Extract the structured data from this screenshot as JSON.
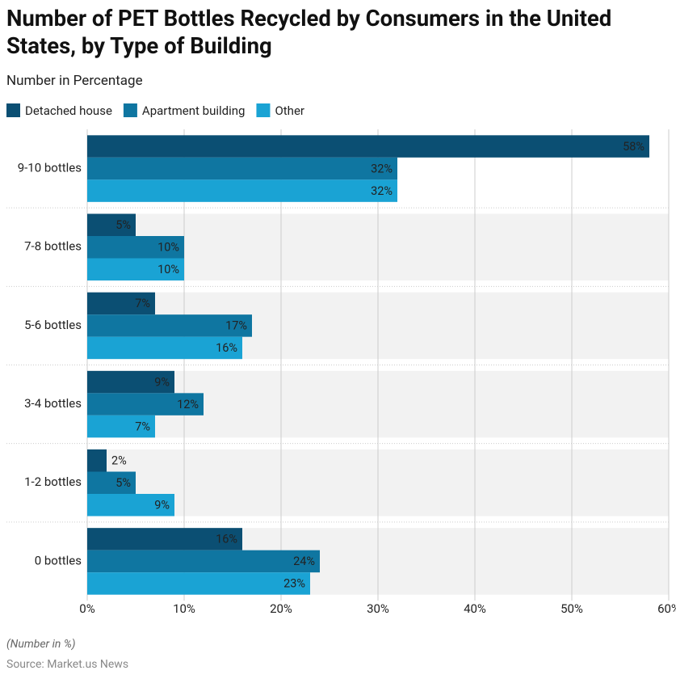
{
  "chart_data": {
    "type": "hbar",
    "title": "Number of PET Bottles Recycled by Consumers in the United States, by Type of Building",
    "subtitle": "Number in Percentage",
    "note": "(Number in %)",
    "source": "Source: Market.us News",
    "categories": [
      "9-10 bottles",
      "7-8 bottles",
      "5-6 bottles",
      "3-4 bottles",
      "1-2 bottles",
      "0 bottles"
    ],
    "series": [
      {
        "name": "Detached house",
        "color": "#0b4f73",
        "values": [
          58,
          5,
          7,
          9,
          2,
          16
        ],
        "value_labels": [
          "58%",
          "5%",
          "7%",
          "9%",
          "2%",
          "16%"
        ]
      },
      {
        "name": "Apartment building",
        "color": "#0f76a1",
        "values": [
          32,
          10,
          17,
          12,
          5,
          24
        ],
        "value_labels": [
          "32%",
          "10%",
          "17%",
          "12%",
          "5%",
          "24%"
        ]
      },
      {
        "name": "Other",
        "color": "#1aa3d4",
        "values": [
          32,
          10,
          16,
          7,
          9,
          23
        ],
        "value_labels": [
          "32%",
          "10%",
          "16%",
          "7%",
          "9%",
          "23%"
        ]
      }
    ],
    "xlim": [
      0,
      60
    ],
    "xticks": [
      {
        "value": 0,
        "label": "0%"
      },
      {
        "value": 10,
        "label": "10%"
      },
      {
        "value": 20,
        "label": "20%"
      },
      {
        "value": 30,
        "label": "30%"
      },
      {
        "value": 40,
        "label": "40%"
      },
      {
        "value": 50,
        "label": "50%"
      },
      {
        "value": 60,
        "label": "60%"
      }
    ],
    "grid": true,
    "legend": "top"
  }
}
